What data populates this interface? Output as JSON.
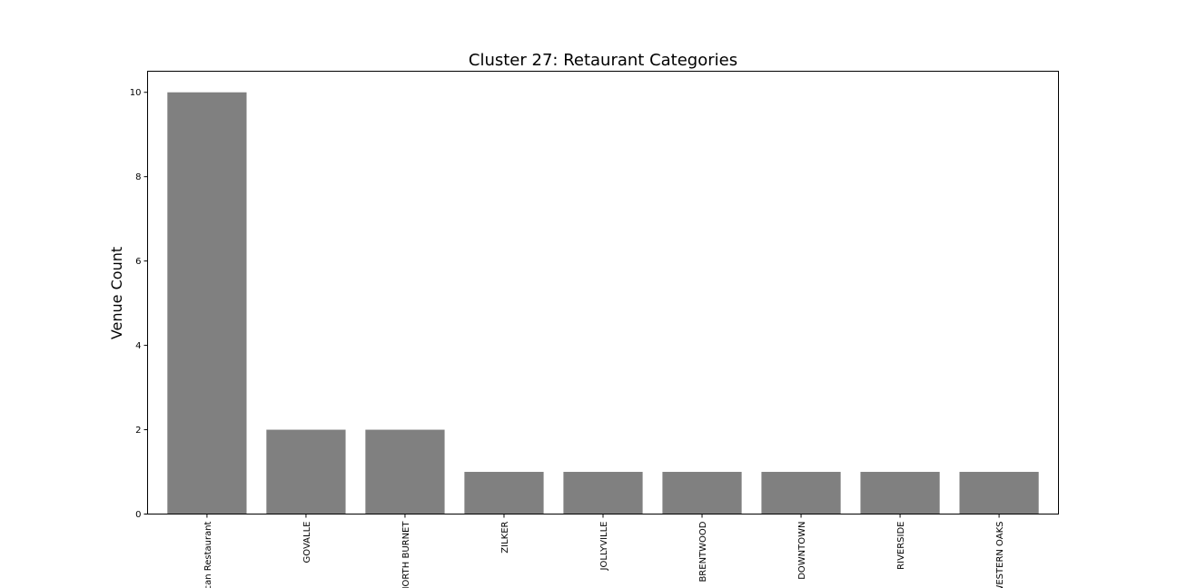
{
  "chart_data": {
    "type": "bar",
    "title": "Cluster 27: Retaurant Categories",
    "xlabel": "",
    "ylabel": "Venue Count",
    "categories": [
      "Mexican Restaurant",
      "GOVALLE",
      "NORTH BURNET",
      "ZILKER",
      "JOLLYVILLE",
      "BRENTWOOD",
      "DOWNTOWN",
      "RIVERSIDE",
      "WESTERN OAKS"
    ],
    "values": [
      10,
      2,
      2,
      1,
      1,
      1,
      1,
      1,
      1
    ],
    "ylim": [
      0,
      10.5
    ],
    "yticks": [
      0,
      2,
      4,
      6,
      8,
      10
    ],
    "grid": false,
    "bar_color": "#808080"
  }
}
